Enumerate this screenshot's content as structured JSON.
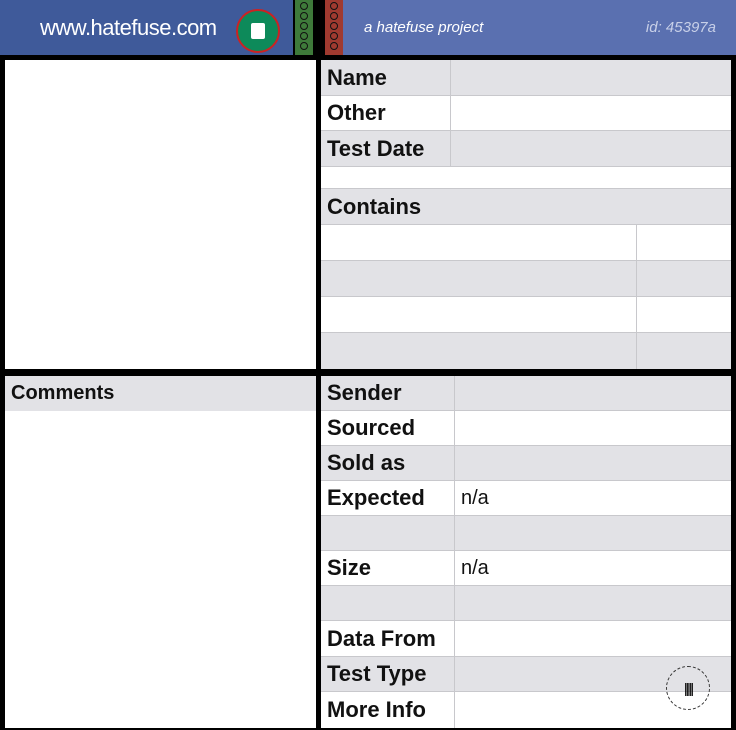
{
  "header": {
    "site": "www.hatefuse.com",
    "project": "a hatefuse project",
    "id": "id: 45397a"
  },
  "info": {
    "rows": [
      {
        "label": "Name",
        "value": ""
      },
      {
        "label": "Other",
        "value": ""
      },
      {
        "label": "Test Date",
        "value": ""
      }
    ],
    "contains_label": "Contains"
  },
  "comments": {
    "title": "Comments"
  },
  "details": {
    "rows": [
      {
        "label": "Sender",
        "value": ""
      },
      {
        "label": "Sourced",
        "value": ""
      },
      {
        "label": "Sold as",
        "value": ""
      },
      {
        "label": "Expected",
        "value": "n/a"
      },
      {
        "label": "",
        "value": ""
      },
      {
        "label": "Size",
        "value": "n/a"
      },
      {
        "label": "",
        "value": ""
      },
      {
        "label": "Data From",
        "value": ""
      },
      {
        "label": "Test Type",
        "value": ""
      },
      {
        "label": "More Info",
        "value": ""
      }
    ]
  },
  "logo": {
    "text": "hatefuse audio"
  },
  "colors": {
    "header_left": "#3f5a9a",
    "header_right": "#5a70b0",
    "row_gray": "#e2e2e6"
  }
}
